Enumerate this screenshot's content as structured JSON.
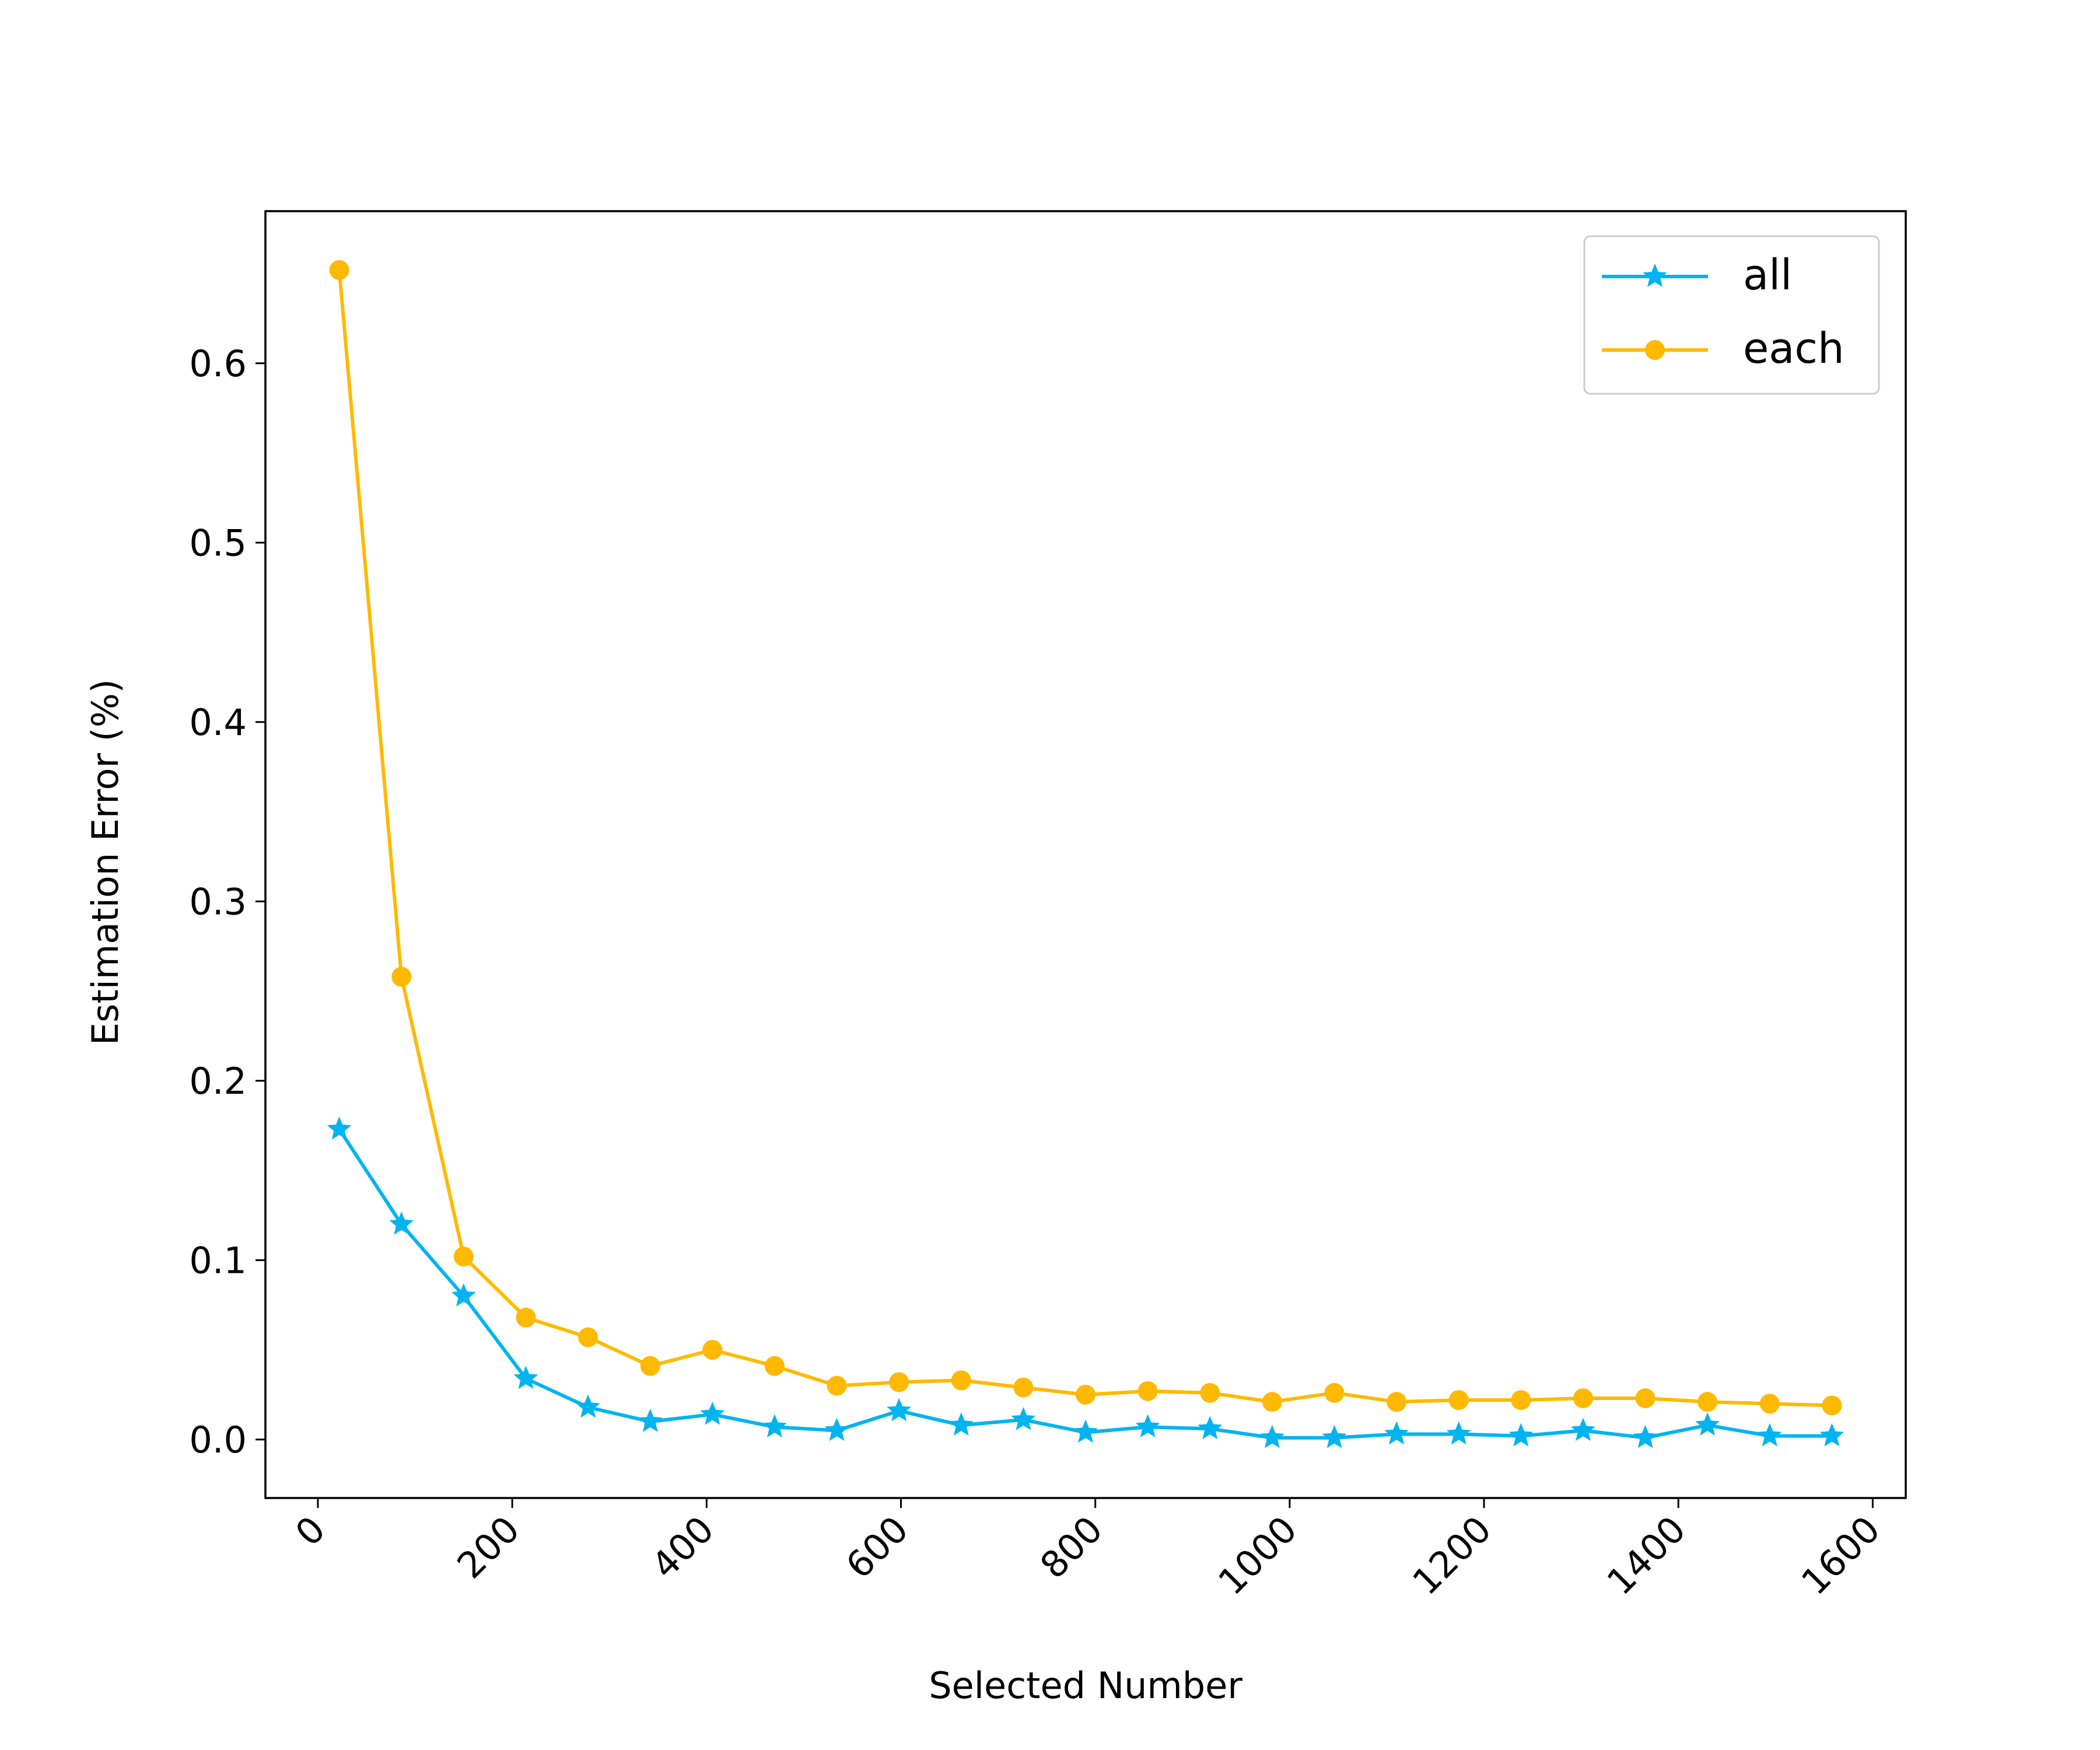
{
  "chart_data": {
    "type": "line",
    "title": "",
    "xlabel": "Selected Number",
    "ylabel": "Estimation Error (%)",
    "xlim": [
      -54,
      1634
    ],
    "ylim": [
      -0.0326,
      0.6848
    ],
    "xticks": [
      0,
      200,
      400,
      600,
      800,
      1000,
      1200,
      1400,
      1600
    ],
    "xtick_labels": [
      "0",
      "200",
      "400",
      "600",
      "800",
      "1000",
      "1200",
      "1400",
      "1600"
    ],
    "yticks": [
      0.0,
      0.1,
      0.2,
      0.3,
      0.4,
      0.5,
      0.6
    ],
    "ytick_labels": [
      "0.0",
      "0.1",
      "0.2",
      "0.3",
      "0.4",
      "0.5",
      "0.6"
    ],
    "grid": false,
    "legend_position": "top-right",
    "x": [
      22,
      86,
      150,
      214,
      278,
      342,
      406,
      470,
      534,
      598,
      662,
      726,
      790,
      854,
      918,
      982,
      1046,
      1110,
      1174,
      1238,
      1302,
      1366,
      1430,
      1494,
      1558
    ],
    "series": [
      {
        "name": "all",
        "color": "#00b4f0",
        "marker": "star",
        "values": [
          0.173,
          0.12,
          0.08,
          0.034,
          0.018,
          0.01,
          0.014,
          0.007,
          0.005,
          0.016,
          0.008,
          0.011,
          0.004,
          0.007,
          0.006,
          0.001,
          0.001,
          0.003,
          0.003,
          0.002,
          0.005,
          0.001,
          0.008,
          0.002,
          0.002
        ]
      },
      {
        "name": "each",
        "color": "#ffb900",
        "marker": "circle",
        "values": [
          0.652,
          0.258,
          0.102,
          0.068,
          0.057,
          0.041,
          0.05,
          0.041,
          0.03,
          0.032,
          0.033,
          0.029,
          0.025,
          0.027,
          0.026,
          0.021,
          0.026,
          0.021,
          0.022,
          0.022,
          0.023,
          0.023,
          0.021,
          0.02,
          0.019
        ]
      }
    ]
  }
}
